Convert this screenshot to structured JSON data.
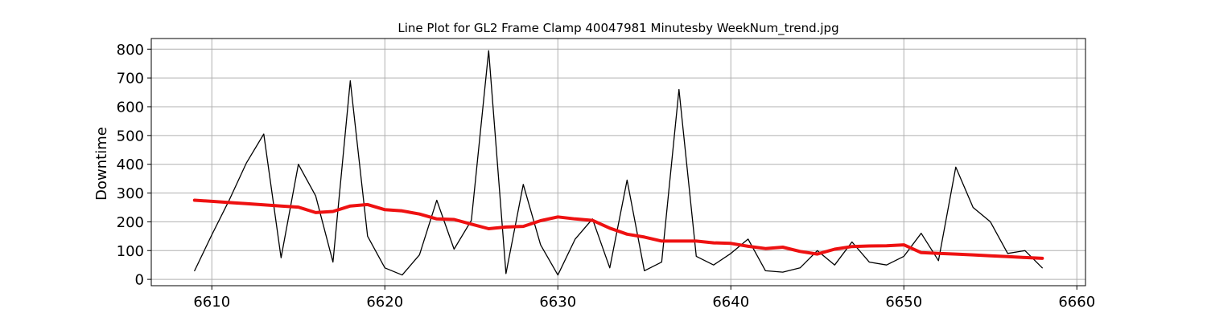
{
  "chart_data": {
    "type": "line",
    "title": "Line Plot for GL2 Frame Clamp 40047981 Minutesby WeekNum_trend.jpg",
    "xlabel": "",
    "ylabel": "Downtime",
    "xlim": [
      6606.5,
      6660.5
    ],
    "ylim": [
      -22,
      837
    ],
    "xticks": [
      6610,
      6620,
      6630,
      6640,
      6650,
      6660
    ],
    "yticks": [
      0,
      100,
      200,
      300,
      400,
      500,
      600,
      700,
      800
    ],
    "grid": true,
    "legend": "none",
    "series": [
      {
        "color": "#000000",
        "x": [
          6609,
          6610,
          6611,
          6612,
          6613,
          6614,
          6615,
          6616,
          6617,
          6618,
          6619,
          6620,
          6621,
          6622,
          6623,
          6624,
          6625,
          6626,
          6627,
          6628,
          6629,
          6630,
          6631,
          6632,
          6633,
          6634,
          6635,
          6636,
          6637,
          6638,
          6639,
          6640,
          6641,
          6642,
          6643,
          6644,
          6645,
          6646,
          6647,
          6648,
          6649,
          6650,
          6651,
          6652,
          6653,
          6654,
          6655,
          6656,
          6657,
          6658
        ],
        "y": [
          30,
          155,
          275,
          405,
          505,
          75,
          400,
          290,
          60,
          690,
          150,
          40,
          15,
          85,
          275,
          105,
          205,
          795,
          20,
          330,
          120,
          15,
          140,
          210,
          40,
          345,
          30,
          60,
          660,
          80,
          50,
          90,
          140,
          30,
          25,
          40,
          100,
          50,
          130,
          60,
          50,
          80,
          160,
          65,
          390,
          250,
          200,
          90,
          100,
          40
        ]
      },
      {
        "color": "#ee1111",
        "x": [
          6609,
          6610,
          6611,
          6612,
          6613,
          6614,
          6615,
          6616,
          6617,
          6618,
          6619,
          6620,
          6621,
          6622,
          6623,
          6624,
          6625,
          6626,
          6627,
          6628,
          6629,
          6630,
          6631,
          6632,
          6633,
          6634,
          6635,
          6636,
          6637,
          6638,
          6639,
          6640,
          6641,
          6642,
          6643,
          6644,
          6645,
          6646,
          6647,
          6648,
          6649,
          6650,
          6651,
          6652,
          6653,
          6654,
          6655,
          6656,
          6657,
          6658
        ],
        "y": [
          275,
          271,
          267,
          263,
          259,
          255,
          251,
          232,
          236,
          255,
          260,
          242,
          238,
          227,
          210,
          208,
          192,
          176,
          182,
          184,
          204,
          217,
          210,
          205,
          178,
          157,
          147,
          133,
          133,
          133,
          127,
          125,
          115,
          107,
          112,
          97,
          88,
          105,
          114,
          116,
          117,
          120,
          93,
          90,
          88,
          85,
          82,
          79,
          76,
          73
        ]
      }
    ]
  }
}
